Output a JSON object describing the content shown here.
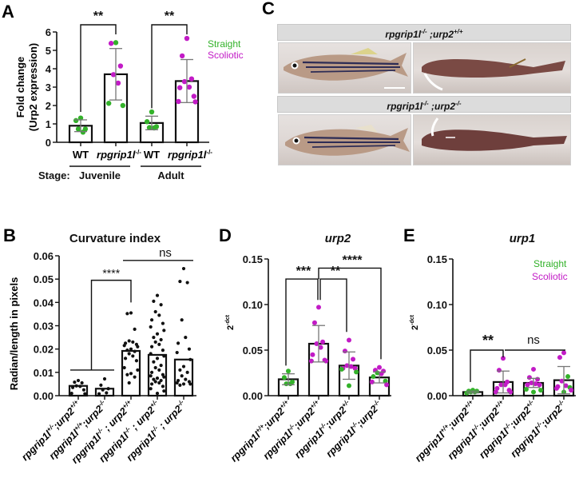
{
  "panel_labels": {
    "a": "A",
    "b": "B",
    "c": "C",
    "d": "D",
    "e": "E"
  },
  "colors": {
    "straight": "#33b22a",
    "scoliotic": "#c21bc6",
    "black": "#111111",
    "errorbar": "#777777"
  },
  "legend": {
    "straight": "Straight",
    "scoliotic": "Scoliotic"
  },
  "panel_c": {
    "rows": [
      {
        "genotype_base": "rpgrip1l",
        "genotype_base_sup": "-/-",
        "genotype_sep": " ;urp2",
        "genotype_sup": "+/+"
      },
      {
        "genotype_base": "rpgrip1l",
        "genotype_base_sup": "-/-",
        "genotype_sep": " ;urp2",
        "genotype_sup": "-/-"
      }
    ],
    "views": [
      "lateral",
      "dorsal"
    ]
  },
  "chart_data": [
    {
      "id": "A",
      "type": "bar",
      "title": "",
      "ylabel": "Fold change",
      "ylabel2": "(Urp2 expression)",
      "ylim": [
        0,
        6
      ],
      "yticks": [
        "0",
        "1",
        "2",
        "3",
        "4",
        "5",
        "6"
      ],
      "categories": [
        "WT",
        "rpgrip1l-/-",
        "WT",
        "rpgrip1l-/-"
      ],
      "category_labels": [
        {
          "base": "WT",
          "sup": ""
        },
        {
          "base": "rpgrip1l",
          "sup": "-/-"
        },
        {
          "base": "WT",
          "sup": ""
        },
        {
          "base": "rpgrip1l",
          "sup": "-/-"
        }
      ],
      "group_row_label": "Stage:",
      "groups": [
        {
          "label": "Juvenile",
          "categories": [
            0,
            1
          ]
        },
        {
          "label": "Adult",
          "categories": [
            2,
            3
          ]
        }
      ],
      "values": [
        0.9,
        3.7,
        1.05,
        3.33
      ],
      "errors": [
        0.32,
        1.4,
        0.37,
        1.17
      ],
      "points": [
        [
          [
            1.32,
            "straight"
          ],
          [
            1.18,
            "straight"
          ],
          [
            0.72,
            "straight"
          ],
          [
            0.72,
            "straight"
          ],
          [
            0.55,
            "straight"
          ]
        ],
        [
          [
            5.42,
            "straight"
          ],
          [
            5.38,
            "scoliotic"
          ],
          [
            4.15,
            "scoliotic"
          ],
          [
            3.68,
            "scoliotic"
          ],
          [
            3.22,
            "scoliotic"
          ],
          [
            2.12,
            "straight"
          ],
          [
            2.0,
            "straight"
          ]
        ],
        [
          [
            1.65,
            "straight"
          ],
          [
            1.12,
            "straight"
          ],
          [
            0.85,
            "straight"
          ],
          [
            0.8,
            "straight"
          ],
          [
            0.78,
            "straight"
          ]
        ],
        [
          [
            5.65,
            "scoliotic"
          ],
          [
            4.7,
            "scoliotic"
          ],
          [
            3.45,
            "scoliotic"
          ],
          [
            3.3,
            "scoliotic"
          ],
          [
            3.0,
            "scoliotic"
          ],
          [
            2.97,
            "scoliotic"
          ],
          [
            2.5,
            "scoliotic"
          ],
          [
            2.22,
            "scoliotic"
          ],
          [
            2.2,
            "scoliotic"
          ]
        ]
      ],
      "significance": [
        {
          "from": 0,
          "to": 1,
          "label": "**"
        },
        {
          "from": 2,
          "to": 3,
          "label": "**"
        }
      ]
    },
    {
      "id": "B",
      "type": "bar",
      "title": "Curvature index",
      "ylabel": "Radian/length in pixels",
      "ylim": [
        0,
        0.06
      ],
      "yticks": [
        "0.00",
        "0.01",
        "0.02",
        "0.03",
        "0.04",
        "0.05",
        "0.06"
      ],
      "categories": [
        "rpgrip1l+/-;urp2+/+",
        "rpgrip1l+/+;urp2-/-",
        "rpgrip1l-/- ; urp2+/+",
        "rpgrip1l-/- ; urp2+/-",
        "rpgrip1l-/- ; urp2-/-"
      ],
      "category_labels": [
        {
          "a": "rpgrip1l",
          "as": "+/-",
          "b": ";urp2",
          "bs": "+/+"
        },
        {
          "a": "rpgrip1l",
          "as": "+/+",
          "b": ";urp2",
          "bs": "-/-"
        },
        {
          "a": "rpgrip1l",
          "as": "-/-",
          "b": " ; urp2",
          "bs": "+/+"
        },
        {
          "a": "rpgrip1l",
          "as": "-/-",
          "b": " ; urp2",
          "bs": "+/-"
        },
        {
          "a": "rpgrip1l",
          "as": "-/-",
          "b": " ; urp2",
          "bs": "-/-"
        }
      ],
      "values": [
        0.0042,
        0.003,
        0.0192,
        0.0175,
        0.0155
      ],
      "errors": [
        0,
        0,
        0,
        0,
        0
      ],
      "points": [
        [
          [
            0.0065,
            "black"
          ],
          [
            0.0058,
            "black"
          ],
          [
            0.0055,
            "black"
          ],
          [
            0.0042,
            "black"
          ],
          [
            0.004,
            "black"
          ],
          [
            0.0035,
            "black"
          ],
          [
            0.0025,
            "black"
          ],
          [
            0.001,
            "black"
          ],
          [
            0.0008,
            "black"
          ]
        ],
        [
          [
            0.0072,
            "black"
          ],
          [
            0.0045,
            "black"
          ],
          [
            0.003,
            "black"
          ],
          [
            0.0025,
            "black"
          ],
          [
            0.0012,
            "black"
          ],
          [
            0.0008,
            "black"
          ]
        ],
        [
          [
            0.0355,
            "black"
          ],
          [
            0.0352,
            "black"
          ],
          [
            0.0285,
            "black"
          ],
          [
            0.0235,
            "black"
          ],
          [
            0.023,
            "black"
          ],
          [
            0.0225,
            "black"
          ],
          [
            0.022,
            "black"
          ],
          [
            0.0215,
            "black"
          ],
          [
            0.021,
            "black"
          ],
          [
            0.02,
            "black"
          ],
          [
            0.0195,
            "black"
          ],
          [
            0.019,
            "black"
          ],
          [
            0.018,
            "black"
          ],
          [
            0.017,
            "black"
          ],
          [
            0.016,
            "black"
          ],
          [
            0.015,
            "black"
          ],
          [
            0.012,
            "black"
          ],
          [
            0.011,
            "black"
          ],
          [
            0.0095,
            "black"
          ],
          [
            0.009,
            "black"
          ],
          [
            0.008,
            "black"
          ],
          [
            0.0055,
            "black"
          ]
        ],
        [
          [
            0.043,
            "black"
          ],
          [
            0.0405,
            "black"
          ],
          [
            0.039,
            "black"
          ],
          [
            0.036,
            "black"
          ],
          [
            0.0345,
            "black"
          ],
          [
            0.0325,
            "black"
          ],
          [
            0.031,
            "black"
          ],
          [
            0.0295,
            "black"
          ],
          [
            0.028,
            "black"
          ],
          [
            0.0265,
            "black"
          ],
          [
            0.025,
            "black"
          ],
          [
            0.024,
            "black"
          ],
          [
            0.023,
            "black"
          ],
          [
            0.022,
            "black"
          ],
          [
            0.021,
            "black"
          ],
          [
            0.0195,
            "black"
          ],
          [
            0.018,
            "black"
          ],
          [
            0.017,
            "black"
          ],
          [
            0.016,
            "black"
          ],
          [
            0.0145,
            "black"
          ],
          [
            0.013,
            "black"
          ],
          [
            0.012,
            "black"
          ],
          [
            0.011,
            "black"
          ],
          [
            0.01,
            "black"
          ],
          [
            0.009,
            "black"
          ],
          [
            0.0085,
            "black"
          ],
          [
            0.008,
            "black"
          ],
          [
            0.0075,
            "black"
          ],
          [
            0.007,
            "black"
          ],
          [
            0.0065,
            "black"
          ],
          [
            0.006,
            "black"
          ],
          [
            0.0055,
            "black"
          ],
          [
            0.005,
            "black"
          ],
          [
            0.004,
            "black"
          ],
          [
            0.003,
            "black"
          ],
          [
            0.002,
            "black"
          ],
          [
            0.001,
            "black"
          ]
        ],
        [
          [
            0.0545,
            "black"
          ],
          [
            0.049,
            "black"
          ],
          [
            0.0485,
            "black"
          ],
          [
            0.0325,
            "black"
          ],
          [
            0.025,
            "black"
          ],
          [
            0.0225,
            "black"
          ],
          [
            0.02,
            "black"
          ],
          [
            0.0185,
            "black"
          ],
          [
            0.0155,
            "black"
          ],
          [
            0.0125,
            "black"
          ],
          [
            0.011,
            "black"
          ],
          [
            0.01,
            "black"
          ],
          [
            0.0085,
            "black"
          ],
          [
            0.007,
            "black"
          ],
          [
            0.0065,
            "black"
          ],
          [
            0.006,
            "black"
          ],
          [
            0.0055,
            "black"
          ],
          [
            0.005,
            "black"
          ],
          [
            0.005,
            "black"
          ],
          [
            0.0045,
            "black"
          ]
        ]
      ],
      "significance": [
        {
          "type": "group",
          "from": [
            0,
            1
          ],
          "to": 2,
          "label": "****"
        },
        {
          "type": "line",
          "from": 2,
          "to": 4,
          "label": "ns"
        }
      ]
    },
    {
      "id": "D",
      "type": "bar",
      "title": "urp2",
      "ylabel": "2",
      "ylabel_sup": "-dct",
      "ylim": [
        0,
        0.15
      ],
      "yticks": [
        "0.00",
        "0.05",
        "0.10",
        "0.15"
      ],
      "categories": [
        "rpgrip1l+/+;urp2+/+",
        "rpgrip1l-/-;urp2+/+",
        "rpgrip1l-/-;urp2+/-",
        "rpgrip1l-/-;urp2-/-"
      ],
      "category_labels": [
        {
          "a": "rpgrip1l",
          "as": "+/+",
          "b": ";urp2",
          "bs": "+/+"
        },
        {
          "a": "rpgrip1l",
          "as": "-/-",
          "b": ";urp2",
          "bs": "+/+"
        },
        {
          "a": "rpgrip1l",
          "as": "-/-",
          "b": ";urp2",
          "bs": "+/-"
        },
        {
          "a": "rpgrip1l",
          "as": "-/-",
          "b": ";urp2",
          "bs": "-/-"
        }
      ],
      "values": [
        0.018,
        0.057,
        0.033,
        0.02
      ],
      "errors": [
        0.006,
        0.02,
        0.015,
        0.006
      ],
      "points": [
        [
          [
            0.027,
            "straight"
          ],
          [
            0.02,
            "straight"
          ],
          [
            0.015,
            "straight"
          ],
          [
            0.013,
            "straight"
          ],
          [
            0.013,
            "straight"
          ]
        ],
        [
          [
            0.097,
            "scoliotic"
          ],
          [
            0.08,
            "scoliotic"
          ],
          [
            0.059,
            "scoliotic"
          ],
          [
            0.057,
            "scoliotic"
          ],
          [
            0.053,
            "scoliotic"
          ],
          [
            0.045,
            "scoliotic"
          ],
          [
            0.039,
            "scoliotic"
          ],
          [
            0.038,
            "scoliotic"
          ],
          [
            0.038,
            "scoliotic"
          ]
        ],
        [
          [
            0.061,
            "scoliotic"
          ],
          [
            0.049,
            "scoliotic"
          ],
          [
            0.04,
            "scoliotic"
          ],
          [
            0.033,
            "scoliotic"
          ],
          [
            0.032,
            "scoliotic"
          ],
          [
            0.03,
            "scoliotic"
          ],
          [
            0.03,
            "scoliotic"
          ],
          [
            0.029,
            "straight"
          ],
          [
            0.026,
            "straight"
          ],
          [
            0.011,
            "straight"
          ]
        ],
        [
          [
            0.031,
            "scoliotic"
          ],
          [
            0.028,
            "scoliotic"
          ],
          [
            0.027,
            "scoliotic"
          ],
          [
            0.025,
            "straight"
          ],
          [
            0.024,
            "scoliotic"
          ],
          [
            0.021,
            "straight"
          ],
          [
            0.016,
            "straight"
          ],
          [
            0.015,
            "scoliotic"
          ],
          [
            0.012,
            "scoliotic"
          ]
        ]
      ],
      "significance": [
        {
          "from": 0,
          "to": 1,
          "label": "***",
          "level": 0
        },
        {
          "from": 1,
          "to": 2,
          "label": "**",
          "level": 0
        },
        {
          "from": 1,
          "to": 3,
          "label": "****",
          "level": 1
        }
      ]
    },
    {
      "id": "E",
      "type": "bar",
      "title": "urp1",
      "ylabel": "2",
      "ylabel_sup": "-dct",
      "ylim": [
        0,
        0.15
      ],
      "yticks": [
        "0.00",
        "0.05",
        "0.10",
        "0.15"
      ],
      "categories": [
        "rpgrip1l+/+;urp2+/+",
        "rpgrip1l-/-;urp2+/+",
        "rpgrip1l-/-;urp2+/-",
        "rpgrip1l-/-;urp2-/-"
      ],
      "category_labels": [
        {
          "a": "rpgrip1l",
          "as": "+/+",
          "b": ";urp2",
          "bs": "+/+"
        },
        {
          "a": "rpgrip1l",
          "as": "-/-",
          "b": ";urp2",
          "bs": "+/+"
        },
        {
          "a": "rpgrip1l",
          "as": "-/-",
          "b": ";urp2",
          "bs": "+/-"
        },
        {
          "a": "rpgrip1l",
          "as": "-/-",
          "b": ";urp2",
          "bs": "-/-"
        }
      ],
      "values": [
        0.004,
        0.015,
        0.014,
        0.017
      ],
      "errors": [
        0.001,
        0.012,
        0.005,
        0.015
      ],
      "points": [
        [
          [
            0.006,
            "straight"
          ],
          [
            0.005,
            "straight"
          ],
          [
            0.005,
            "straight"
          ],
          [
            0.004,
            "straight"
          ],
          [
            0.004,
            "straight"
          ],
          [
            0.003,
            "straight"
          ]
        ],
        [
          [
            0.041,
            "scoliotic"
          ],
          [
            0.028,
            "scoliotic"
          ],
          [
            0.015,
            "scoliotic"
          ],
          [
            0.012,
            "scoliotic"
          ],
          [
            0.012,
            "scoliotic"
          ],
          [
            0.008,
            "scoliotic"
          ],
          [
            0.006,
            "scoliotic"
          ],
          [
            0.004,
            "scoliotic"
          ],
          [
            0.004,
            "scoliotic"
          ]
        ],
        [
          [
            0.029,
            "scoliotic"
          ],
          [
            0.02,
            "scoliotic"
          ],
          [
            0.018,
            "scoliotic"
          ],
          [
            0.014,
            "scoliotic"
          ],
          [
            0.013,
            "scoliotic"
          ],
          [
            0.012,
            "scoliotic"
          ],
          [
            0.012,
            "scoliotic"
          ],
          [
            0.007,
            "straight"
          ],
          [
            0.006,
            "straight"
          ],
          [
            0.004,
            "straight"
          ]
        ],
        [
          [
            0.047,
            "scoliotic"
          ],
          [
            0.042,
            "scoliotic"
          ],
          [
            0.021,
            "straight"
          ],
          [
            0.016,
            "scoliotic"
          ],
          [
            0.011,
            "scoliotic"
          ],
          [
            0.01,
            "scoliotic"
          ],
          [
            0.009,
            "straight"
          ],
          [
            0.008,
            "scoliotic"
          ],
          [
            0.006,
            "scoliotic"
          ],
          [
            0.004,
            "straight"
          ]
        ]
      ],
      "significance": [
        {
          "from": 0,
          "to": 1,
          "label": "**",
          "level": 0
        },
        {
          "type": "line",
          "from": 1,
          "to": 3,
          "label": "ns",
          "level": 0
        }
      ]
    }
  ]
}
